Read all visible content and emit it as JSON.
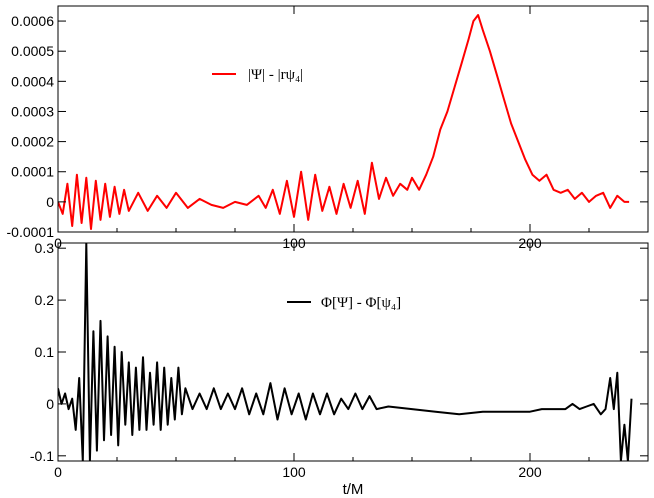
{
  "chart_data": [
    {
      "type": "line",
      "xlabel": "",
      "ylabel": "",
      "xlim": [
        0,
        250
      ],
      "ylim": [
        -0.0001,
        0.00065
      ],
      "x_ticks": [
        0,
        100,
        200
      ],
      "x_tick_labels": [
        "0",
        "100",
        "200"
      ],
      "y_ticks": [
        -0.0001,
        0,
        0.0001,
        0.0002,
        0.0003,
        0.0004,
        0.0005,
        0.0006
      ],
      "y_tick_labels": [
        "-0.0001",
        "0",
        "0.0001",
        "0.0002",
        "0.0003",
        "0.0004",
        "0.0005",
        "0.0006"
      ],
      "legend_position": "upper-left",
      "series": [
        {
          "name": "|Ψ| - |rψ₄|",
          "color": "#ff0000",
          "x": [
            0,
            2,
            4,
            6,
            8,
            10,
            12,
            14,
            16,
            18,
            20,
            22,
            24,
            26,
            28,
            30,
            34,
            38,
            42,
            46,
            50,
            55,
            60,
            65,
            70,
            75,
            80,
            85,
            88,
            91,
            94,
            97,
            100,
            103,
            106,
            109,
            112,
            115,
            118,
            121,
            124,
            127,
            130,
            133,
            136,
            139,
            142,
            145,
            148,
            150,
            153,
            156,
            159,
            162,
            165,
            168,
            171,
            174,
            176,
            178,
            180,
            183,
            186,
            189,
            192,
            195,
            198,
            201,
            204,
            207,
            210,
            213,
            216,
            219,
            222,
            225,
            228,
            231,
            234,
            237,
            240,
            242
          ],
          "y": [
            0.0,
            -4e-05,
            6e-05,
            -8e-05,
            9e-05,
            -7e-05,
            8e-05,
            -9e-05,
            7e-05,
            -6e-05,
            6e-05,
            -5e-05,
            5e-05,
            -4e-05,
            4e-05,
            -3e-05,
            3e-05,
            -3e-05,
            2e-05,
            -2e-05,
            3e-05,
            -2e-05,
            1e-05,
            -1e-05,
            -2e-05,
            0.0,
            -1e-05,
            2e-05,
            -2e-05,
            4e-05,
            -4e-05,
            7e-05,
            -5e-05,
            0.0001,
            -6e-05,
            9e-05,
            -3e-05,
            5e-05,
            -4e-05,
            6e-05,
            -2e-05,
            7e-05,
            -4e-05,
            0.00013,
            1e-05,
            8e-05,
            2e-05,
            6e-05,
            4e-05,
            8e-05,
            4e-05,
            9e-05,
            0.00015,
            0.00024,
            0.0003,
            0.00038,
            0.00046,
            0.00054,
            0.0006,
            0.00062,
            0.00057,
            0.0005,
            0.00042,
            0.00034,
            0.00026,
            0.0002,
            0.00014,
            9e-05,
            7e-05,
            9e-05,
            4e-05,
            3e-05,
            4e-05,
            1e-05,
            3e-05,
            0.0,
            2e-05,
            3e-05,
            -2e-05,
            2e-05,
            0.0,
            0.0
          ]
        }
      ]
    },
    {
      "type": "line",
      "xlabel": "t/M",
      "ylabel": "",
      "xlim": [
        0,
        250
      ],
      "ylim": [
        -0.11,
        0.31
      ],
      "x_ticks": [
        0,
        100,
        200
      ],
      "x_tick_labels": [
        "0",
        "100",
        "200"
      ],
      "y_ticks": [
        -0.1,
        0,
        0.1,
        0.2,
        0.3
      ],
      "y_tick_labels": [
        "-0.1",
        "0",
        "0.1",
        "0.2",
        "0.3"
      ],
      "legend_position": "upper-center",
      "series": [
        {
          "name": "Φ[Ψ] - Φ[ψ₄]",
          "color": "#000000",
          "x": [
            0,
            1.5,
            3,
            4.5,
            6,
            7.5,
            9,
            10.5,
            12,
            13.5,
            15,
            16.5,
            18,
            19.5,
            21,
            22.5,
            24,
            25.5,
            27,
            28.5,
            30,
            31.5,
            33,
            34.5,
            36,
            37.5,
            39,
            40.5,
            42,
            43.5,
            45,
            46.5,
            48,
            49.5,
            51,
            52.5,
            54,
            57,
            60,
            63,
            66,
            69,
            72,
            75,
            78,
            81,
            84,
            87,
            90,
            93,
            96,
            99,
            102,
            105,
            108,
            111,
            114,
            117,
            120,
            123,
            126,
            129,
            132,
            135,
            140,
            150,
            160,
            170,
            180,
            190,
            200,
            205,
            210,
            215,
            218,
            221,
            224,
            227,
            230,
            232,
            234,
            235.5,
            237,
            238.5,
            240,
            241.5,
            243
          ],
          "y": [
            0.03,
            0.0,
            0.02,
            -0.01,
            0.01,
            -0.05,
            0.05,
            -0.11,
            0.31,
            -0.11,
            0.14,
            -0.09,
            0.16,
            -0.07,
            0.13,
            -0.06,
            0.11,
            -0.08,
            0.1,
            -0.04,
            0.08,
            -0.06,
            0.07,
            -0.05,
            0.09,
            -0.05,
            0.06,
            -0.04,
            0.08,
            -0.05,
            0.07,
            -0.04,
            0.05,
            -0.03,
            0.07,
            -0.02,
            0.03,
            -0.01,
            0.02,
            -0.01,
            0.03,
            -0.01,
            0.02,
            -0.01,
            0.03,
            -0.02,
            0.02,
            -0.02,
            0.04,
            -0.03,
            0.03,
            -0.02,
            0.02,
            -0.03,
            0.02,
            -0.02,
            0.02,
            -0.02,
            0.01,
            -0.01,
            0.02,
            -0.01,
            0.015,
            -0.01,
            -0.005,
            -0.01,
            -0.015,
            -0.02,
            -0.015,
            -0.015,
            -0.015,
            -0.01,
            -0.01,
            -0.01,
            0.0,
            -0.01,
            -0.005,
            0.0,
            -0.02,
            -0.01,
            0.05,
            -0.01,
            0.06,
            -0.11,
            -0.04,
            -0.11,
            0.01
          ]
        }
      ]
    }
  ]
}
